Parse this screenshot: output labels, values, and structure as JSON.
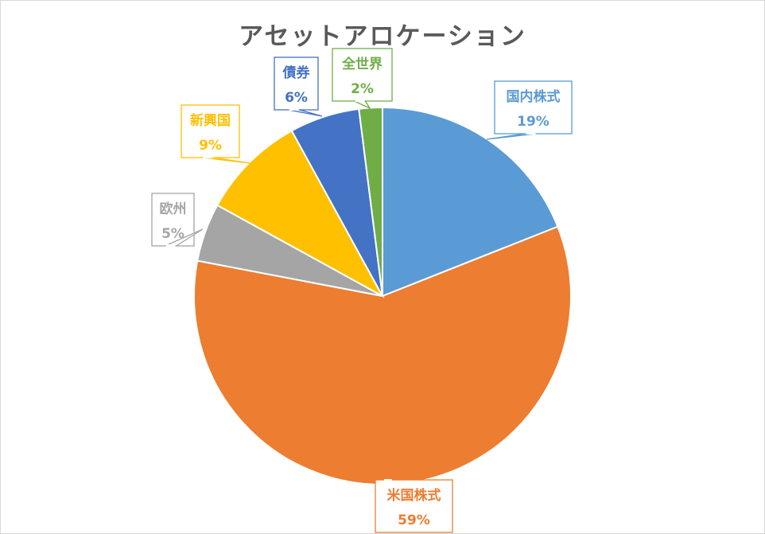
{
  "chart_data": {
    "type": "pie",
    "title": "アセットアロケーション",
    "categories": [
      "国内株式",
      "米国株式",
      "欧州",
      "新興国",
      "債券",
      "全世界"
    ],
    "values": [
      19,
      59,
      5,
      9,
      6,
      2
    ],
    "value_labels": [
      "19%",
      "59%",
      "5%",
      "9%",
      "6%",
      "2%"
    ],
    "colors": [
      "#5B9BD5",
      "#ED7D31",
      "#A5A5A5",
      "#FFC000",
      "#4472C4",
      "#70AD47"
    ],
    "start_angle_deg": 0,
    "direction": "clockwise",
    "legend": "none"
  }
}
